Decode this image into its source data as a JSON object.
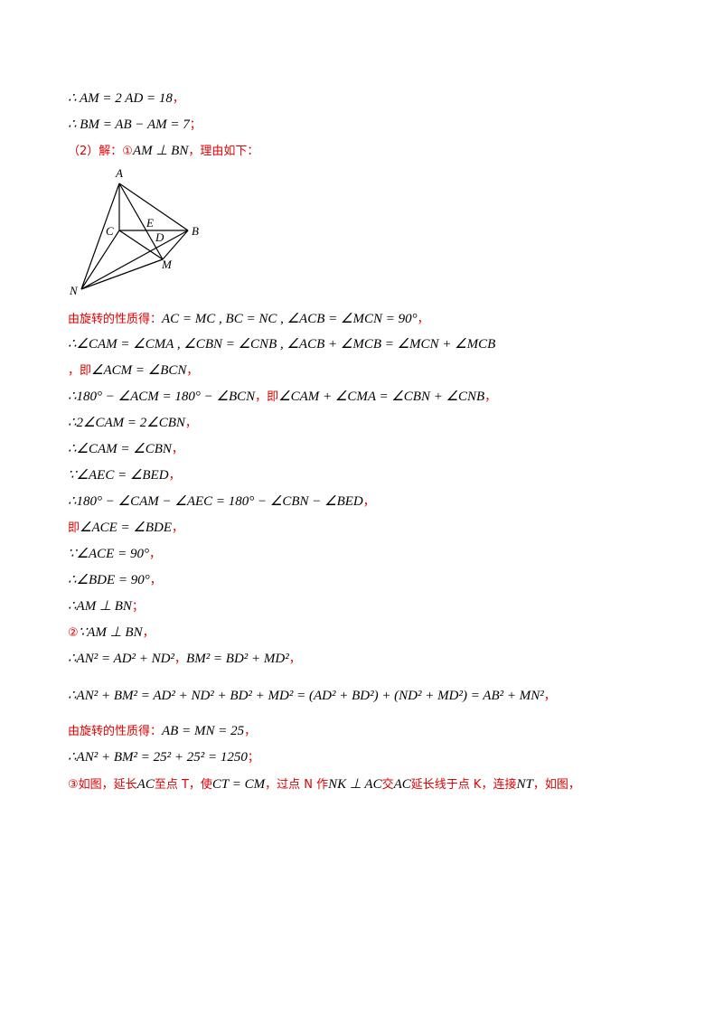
{
  "lines": [
    [
      {
        "text": "∴ AM = 2 AD = 18"
      },
      {
        "text": "，",
        "color": "#e00000"
      }
    ],
    [
      {
        "text": "∴ BM = AB − AM = 7"
      },
      {
        "text": "；",
        "color": "#e00000"
      }
    ],
    [
      {
        "text": "（2）解：①",
        "color": "#e00000"
      },
      {
        "text": "AM ⊥ BN"
      },
      {
        "text": "，理由如下：",
        "color": "#e00000"
      }
    ],
    [
      {
        "text": "由旋转的性质得：",
        "color": "#e00000"
      },
      {
        "text": "AC = MC , BC = NC , ∠ACB = ∠MCN = 90°"
      },
      {
        "text": "，",
        "color": "#e00000"
      }
    ],
    [
      {
        "text": "∴∠CAM = ∠CMA , ∠CBN = ∠CNB , ∠ACB + ∠MCB = ∠MCN + ∠MCB"
      }
    ],
    [
      {
        "text": "，即",
        "color": "#e00000"
      },
      {
        "text": "∠ACM = ∠BCN"
      },
      {
        "text": "，",
        "color": "#e00000"
      }
    ],
    [
      {
        "text": "∴180° − ∠ACM = 180° − ∠BCN"
      },
      {
        "text": "，即",
        "color": "#e00000"
      },
      {
        "text": "∠CAM + ∠CMA = ∠CBN + ∠CNB"
      },
      {
        "text": "，",
        "color": "#e00000"
      }
    ],
    [
      {
        "text": "∴2∠CAM = 2∠CBN"
      },
      {
        "text": "，",
        "color": "#e00000"
      }
    ],
    [
      {
        "text": "∴∠CAM = ∠CBN"
      },
      {
        "text": "，",
        "color": "#e00000"
      }
    ],
    [
      {
        "text": "∵∠AEC = ∠BED"
      },
      {
        "text": "，",
        "color": "#e00000"
      }
    ],
    [
      {
        "text": "∴180° − ∠CAM − ∠AEC = 180° − ∠CBN − ∠BED"
      },
      {
        "text": "，",
        "color": "#e00000"
      }
    ],
    [
      {
        "text": "即",
        "color": "#e00000"
      },
      {
        "text": "∠ACE = ∠BDE"
      },
      {
        "text": "，",
        "color": "#e00000"
      }
    ],
    [
      {
        "text": "∵∠ACE = 90°"
      },
      {
        "text": "，",
        "color": "#e00000"
      }
    ],
    [
      {
        "text": "∴∠BDE = 90°"
      },
      {
        "text": "，",
        "color": "#e00000"
      }
    ],
    [
      {
        "text": "∴AM ⊥ BN"
      },
      {
        "text": "；",
        "color": "#e00000"
      }
    ],
    [
      {
        "text": "②",
        "color": "#e00000"
      },
      {
        "text": "∵AM ⊥ BN"
      },
      {
        "text": "，",
        "color": "#e00000"
      }
    ],
    [
      {
        "text": "∴AN² = AD² + ND²"
      },
      {
        "text": "，",
        "color": "#e00000"
      },
      {
        "text": "BM² = BD² + MD²"
      },
      {
        "text": "，",
        "color": "#e00000"
      }
    ],
    [
      {
        "text": "∴AN² + BM² = AD² + ND² + BD² + MD² = (AD² + BD²) + (ND² + MD²) = AB² + MN²"
      },
      {
        "text": "，",
        "color": "#e00000"
      }
    ],
    [
      {
        "text": "由旋转的性质得：",
        "color": "#e00000"
      },
      {
        "text": "AB = MN = 25"
      },
      {
        "text": "，",
        "color": "#e00000"
      }
    ],
    [
      {
        "text": "∴AN² + BM² = 25² + 25² = 1250"
      },
      {
        "text": "；",
        "color": "#e00000"
      }
    ],
    [
      {
        "text": "③如图，延长",
        "color": "#e00000"
      },
      {
        "text": "AC"
      },
      {
        "text": "至点 T，使",
        "color": "#e00000"
      },
      {
        "text": "CT = CM"
      },
      {
        "text": "，过点 N 作",
        "color": "#e00000"
      },
      {
        "text": "NK ⊥ AC"
      },
      {
        "text": "交",
        "color": "#e00000"
      },
      {
        "text": "AC"
      },
      {
        "text": "延长线于点 K，连接",
        "color": "#e00000"
      },
      {
        "text": "NT"
      },
      {
        "text": "，如图，",
        "color": "#e00000"
      }
    ]
  ],
  "diagram": {
    "labels": [
      "A",
      "C",
      "E",
      "D",
      "B",
      "M",
      "N"
    ]
  }
}
